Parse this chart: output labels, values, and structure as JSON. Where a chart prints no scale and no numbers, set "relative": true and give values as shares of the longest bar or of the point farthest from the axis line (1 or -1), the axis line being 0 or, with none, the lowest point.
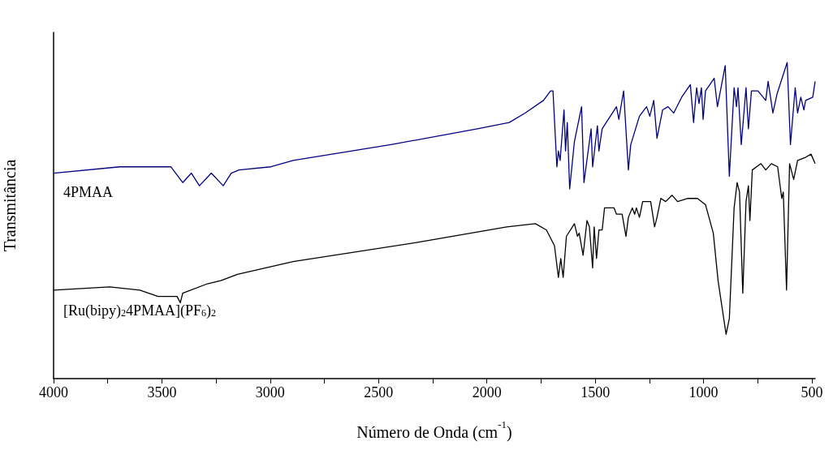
{
  "chart_data": {
    "type": "line",
    "relative": true,
    "xlabel": "Número de Onda (cm$^{-1}$)",
    "ylabel": "Transmitância",
    "xlim": [
      4000,
      485
    ],
    "xticks": [
      4000,
      {
        "value": 3750,
        "label": null
      },
      3500,
      {
        "value": 3250,
        "label": null
      },
      3000,
      {
        "value": 2750,
        "label": null
      },
      2500,
      {
        "value": 2250,
        "label": null
      },
      2000,
      {
        "value": 1750,
        "label": null
      },
      1500,
      {
        "value": 1250,
        "label": null
      },
      1000,
      {
        "value": 750,
        "label": null
      },
      500
    ],
    "legend": false,
    "grid": false,
    "marker": "none",
    "line_style": "solid",
    "series": [
      {
        "name": "4PMAA",
        "color": "#000080",
        "x": [
          4000,
          3694,
          3529,
          3459,
          3404,
          3364,
          3327,
          3272,
          3217,
          3180,
          3144,
          2997,
          2894,
          2443,
          2044,
          1897,
          1824,
          1739,
          1706,
          1695,
          1677,
          1670,
          1662,
          1644,
          1637,
          1629,
          1618,
          1596,
          1563,
          1552,
          1519,
          1512,
          1490,
          1483,
          1468,
          1402,
          1391,
          1369,
          1347,
          1336,
          1296,
          1263,
          1248,
          1230,
          1215,
          1189,
          1164,
          1138,
          1101,
          1061,
          1046,
          1032,
          1021,
          1010,
          1002,
          991,
          951,
          936,
          900,
          881,
          859,
          848,
          841,
          826,
          804,
          793,
          779,
          749,
          713,
          702,
          680,
          661,
          614,
          599,
          577,
          566,
          551,
          537,
          529,
          496,
          485
        ],
        "values": [
          0.65,
          0.67,
          0.67,
          0.67,
          0.62,
          0.65,
          0.61,
          0.65,
          0.61,
          0.65,
          0.66,
          0.67,
          0.69,
          0.74,
          0.79,
          0.81,
          0.84,
          0.88,
          0.91,
          0.91,
          0.67,
          0.72,
          0.69,
          0.85,
          0.72,
          0.81,
          0.6,
          0.75,
          0.86,
          0.62,
          0.79,
          0.67,
          0.8,
          0.72,
          0.79,
          0.86,
          0.82,
          0.91,
          0.66,
          0.74,
          0.83,
          0.86,
          0.83,
          0.88,
          0.76,
          0.85,
          0.86,
          0.84,
          0.89,
          0.93,
          0.81,
          0.92,
          0.87,
          0.92,
          0.82,
          0.91,
          0.95,
          0.86,
          0.99,
          0.64,
          0.92,
          0.86,
          0.92,
          0.74,
          0.92,
          0.79,
          0.91,
          0.91,
          0.88,
          0.94,
          0.84,
          0.9,
          1.0,
          0.74,
          0.92,
          0.84,
          0.89,
          0.85,
          0.88,
          0.89,
          0.94
        ]
      },
      {
        "name": "[Ru(bipy)$_{2}$4PMAA](PF$_{6}$)$_{2}$",
        "color": "#000000",
        "x": [
          4000,
          3741,
          3602,
          3518,
          3503,
          3430,
          3415,
          3404,
          3290,
          3228,
          3151,
          2894,
          2330,
          1908,
          1776,
          1725,
          1688,
          1670,
          1659,
          1648,
          1633,
          1596,
          1582,
          1574,
          1556,
          1538,
          1527,
          1512,
          1505,
          1494,
          1483,
          1468,
          1457,
          1413,
          1402,
          1376,
          1358,
          1347,
          1329,
          1318,
          1310,
          1296,
          1281,
          1244,
          1226,
          1215,
          1197,
          1175,
          1145,
          1120,
          1072,
          1028,
          991,
          955,
          933,
          907,
          896,
          881,
          859,
          845,
          834,
          819,
          804,
          793,
          786,
          775,
          735,
          713,
          687,
          658,
          639,
          632,
          617,
          603,
          584,
          566,
          529,
          504,
          485
        ],
        "values": [
          0.28,
          0.29,
          0.28,
          0.26,
          0.26,
          0.26,
          0.24,
          0.27,
          0.3,
          0.31,
          0.33,
          0.37,
          0.43,
          0.48,
          0.49,
          0.47,
          0.42,
          0.32,
          0.38,
          0.32,
          0.45,
          0.49,
          0.45,
          0.46,
          0.39,
          0.5,
          0.48,
          0.35,
          0.48,
          0.38,
          0.47,
          0.47,
          0.54,
          0.54,
          0.52,
          0.52,
          0.45,
          0.51,
          0.54,
          0.52,
          0.54,
          0.51,
          0.56,
          0.56,
          0.48,
          0.51,
          0.57,
          0.56,
          0.58,
          0.56,
          0.57,
          0.57,
          0.55,
          0.46,
          0.31,
          0.19,
          0.14,
          0.19,
          0.54,
          0.62,
          0.59,
          0.27,
          0.56,
          0.61,
          0.5,
          0.66,
          0.68,
          0.66,
          0.68,
          0.67,
          0.57,
          0.59,
          0.28,
          0.68,
          0.63,
          0.69,
          0.7,
          0.71,
          0.68
        ]
      }
    ]
  }
}
